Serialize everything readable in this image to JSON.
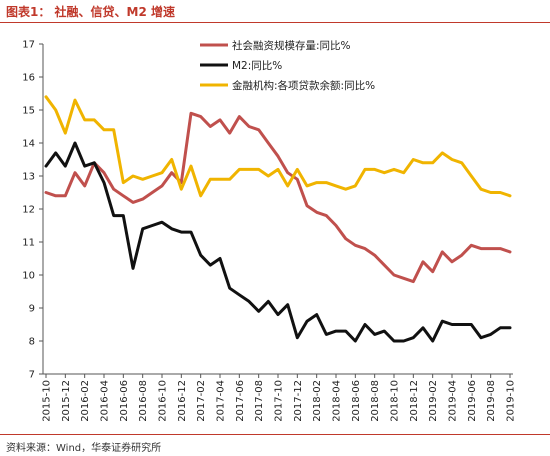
{
  "header": {
    "title": "图表1：  社融、信贷、M2 增速"
  },
  "footer": {
    "source": "资料来源：Wind，华泰证券研究所"
  },
  "chart_data": {
    "type": "line",
    "ylim": [
      7,
      17
    ],
    "yticks": [
      7,
      8,
      9,
      10,
      11,
      12,
      13,
      14,
      15,
      16,
      17
    ],
    "xtick_labels": [
      "2015-10",
      "2015-12",
      "2016-02",
      "2016-04",
      "2016-06",
      "2016-08",
      "2016-10",
      "2016-12",
      "2017-02",
      "2017-04",
      "2017-06",
      "2017-08",
      "2017-10",
      "2017-12",
      "2018-02",
      "2018-04",
      "2018-06",
      "2018-08",
      "2018-10",
      "2018-12",
      "2019-02",
      "2019-04",
      "2019-06",
      "2019-08",
      "2019-10"
    ],
    "x": [
      "2015-10",
      "2015-11",
      "2015-12",
      "2016-01",
      "2016-02",
      "2016-03",
      "2016-04",
      "2016-05",
      "2016-06",
      "2016-07",
      "2016-08",
      "2016-09",
      "2016-10",
      "2016-11",
      "2016-12",
      "2017-01",
      "2017-02",
      "2017-03",
      "2017-04",
      "2017-05",
      "2017-06",
      "2017-07",
      "2017-08",
      "2017-09",
      "2017-10",
      "2017-11",
      "2017-12",
      "2018-01",
      "2018-02",
      "2018-03",
      "2018-04",
      "2018-05",
      "2018-06",
      "2018-07",
      "2018-08",
      "2018-09",
      "2018-10",
      "2018-11",
      "2018-12",
      "2019-01",
      "2019-02",
      "2019-03",
      "2019-04",
      "2019-05",
      "2019-06",
      "2019-07",
      "2019-08",
      "2019-09",
      "2019-10"
    ],
    "legend_position": "top-right",
    "grid": false,
    "series": [
      {
        "name": "社会融资规模存量:同比%",
        "color": "#c0504d",
        "values": [
          12.5,
          12.4,
          12.4,
          13.1,
          12.7,
          13.4,
          13.1,
          12.6,
          12.4,
          12.2,
          12.3,
          12.5,
          12.7,
          13.1,
          12.8,
          14.9,
          14.8,
          14.5,
          14.7,
          14.3,
          14.8,
          14.5,
          14.4,
          14.0,
          13.6,
          13.1,
          12.9,
          12.1,
          11.9,
          11.8,
          11.5,
          11.1,
          10.9,
          10.8,
          10.6,
          10.3,
          10.0,
          9.9,
          9.8,
          10.4,
          10.1,
          10.7,
          10.4,
          10.6,
          10.9,
          10.8,
          10.8,
          10.8,
          10.7
        ]
      },
      {
        "name": "M2:同比%",
        "color": "#111111",
        "values": [
          13.3,
          13.7,
          13.3,
          14.0,
          13.3,
          13.4,
          12.8,
          11.8,
          11.8,
          10.2,
          11.4,
          11.5,
          11.6,
          11.4,
          11.3,
          11.3,
          10.6,
          10.3,
          10.5,
          9.6,
          9.4,
          9.2,
          8.9,
          9.2,
          8.8,
          9.1,
          8.1,
          8.6,
          8.8,
          8.2,
          8.3,
          8.3,
          8.0,
          8.5,
          8.2,
          8.3,
          8.0,
          8.0,
          8.1,
          8.4,
          8.0,
          8.6,
          8.5,
          8.5,
          8.5,
          8.1,
          8.2,
          8.4,
          8.4
        ]
      },
      {
        "name": "金融机构:各项贷款余额:同比%",
        "color": "#f0b400",
        "values": [
          15.4,
          15.0,
          14.3,
          15.3,
          14.7,
          14.7,
          14.4,
          14.4,
          12.8,
          13.0,
          12.9,
          13.0,
          13.1,
          13.5,
          12.6,
          13.3,
          12.4,
          12.9,
          12.9,
          12.9,
          13.2,
          13.2,
          13.2,
          13.0,
          13.2,
          12.7,
          13.2,
          12.7,
          12.8,
          12.8,
          12.7,
          12.6,
          12.7,
          13.2,
          13.2,
          13.1,
          13.2,
          13.1,
          13.5,
          13.4,
          13.4,
          13.7,
          13.5,
          13.4,
          13.0,
          12.6,
          12.5,
          12.5,
          12.4
        ]
      }
    ]
  }
}
